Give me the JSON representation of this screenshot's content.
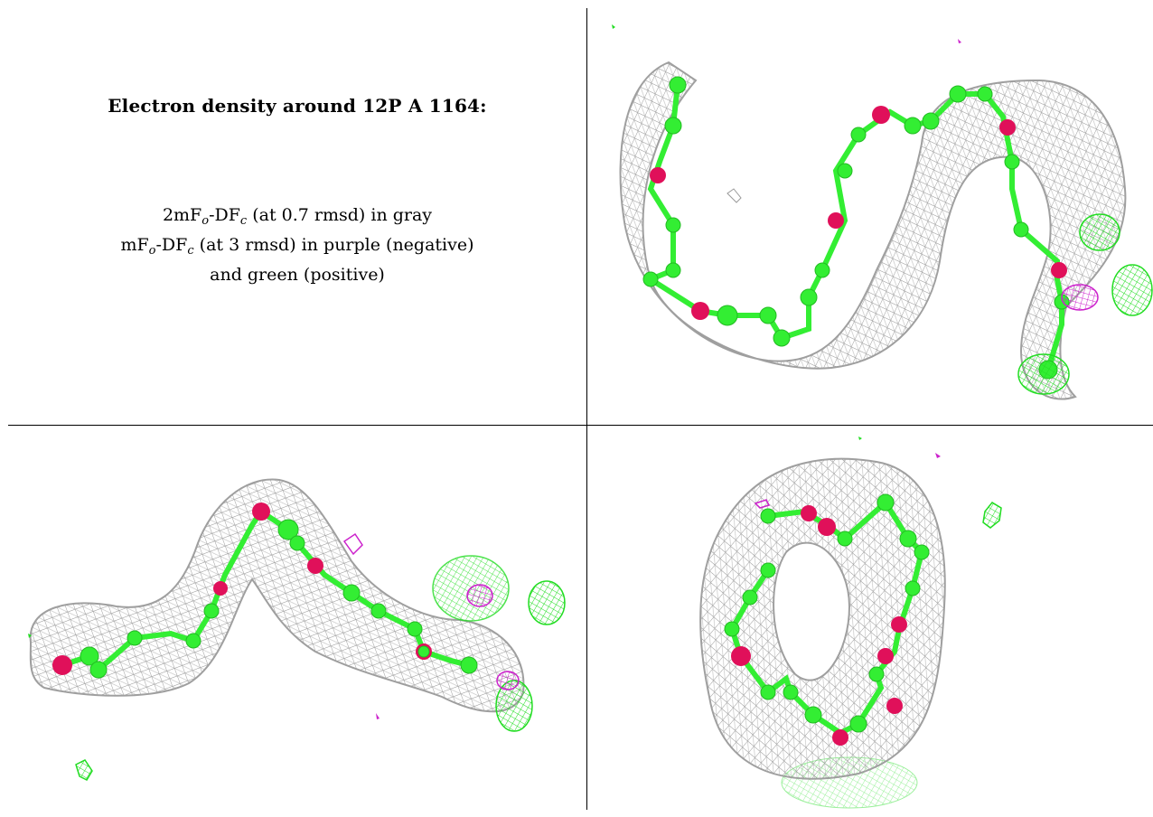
{
  "caption": {
    "title": "Electron density around 12P A 1164:",
    "line1_pre": "2mF",
    "line1_sub_o": "o",
    "line1_mid": "-DF",
    "line1_sub_c": "c",
    "line1_post": " (at 0.7 rmsd) in gray",
    "line2_pre": "mF",
    "line2_sub_o": "o",
    "line2_mid": "-DF",
    "line2_sub_c": "c",
    "line2_post": " (at 3 rmsd) in purple (negative)",
    "line3": "and green (positive)"
  },
  "colors": {
    "mesh_gray": "#9a9a9a",
    "carbon_green": "#33ee33",
    "oxygen_red": "#e0105a",
    "negative_purple": "#cc22cc",
    "positive_green": "#22dd22"
  },
  "views": [
    {
      "name": "view-top-right"
    },
    {
      "name": "view-bottom-left"
    },
    {
      "name": "view-bottom-right"
    }
  ]
}
